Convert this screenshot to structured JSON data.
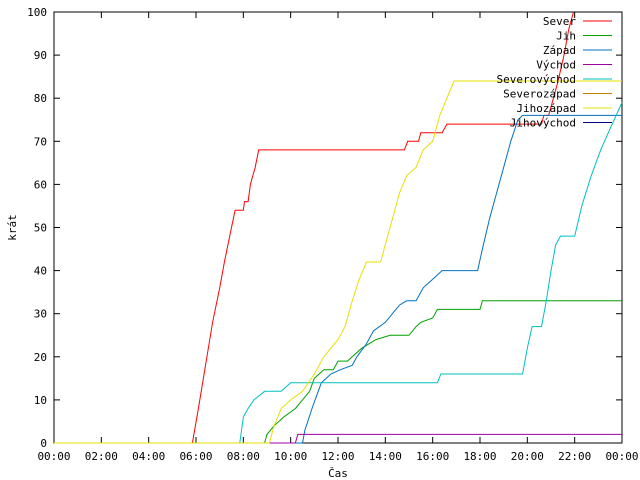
{
  "chart_data": {
    "type": "line",
    "title": "",
    "xlabel": "Čas",
    "ylabel": "krát",
    "ylim": [
      0,
      100
    ],
    "xlim": [
      0,
      24
    ],
    "grid": false,
    "legend_placement": "top-right",
    "y_ticks": [
      0,
      10,
      20,
      30,
      40,
      50,
      60,
      70,
      80,
      90,
      100
    ],
    "y_tick_labels": [
      "0",
      "10",
      "20",
      "30",
      "40",
      "50",
      "60",
      "70",
      "80",
      "90",
      "100"
    ],
    "x_ticks": [
      0,
      2,
      4,
      6,
      8,
      10,
      12,
      14,
      16,
      18,
      20,
      22,
      24
    ],
    "x_tick_labels": [
      "00:00",
      "02:00",
      "04:00",
      "06:00",
      "08:00",
      "10:00",
      "12:00",
      "14:00",
      "16:00",
      "18:00",
      "20:00",
      "22:00",
      "00:00"
    ],
    "series": [
      {
        "name": "Sever",
        "color": "#ff0000",
        "points": [
          [
            0,
            0
          ],
          [
            5.85,
            0
          ],
          [
            6.1,
            8
          ],
          [
            6.4,
            18
          ],
          [
            6.7,
            28
          ],
          [
            7.0,
            36
          ],
          [
            7.2,
            42
          ],
          [
            7.5,
            50
          ],
          [
            7.65,
            54
          ],
          [
            8.0,
            54
          ],
          [
            8.05,
            56
          ],
          [
            8.2,
            56
          ],
          [
            8.3,
            60
          ],
          [
            8.5,
            64
          ],
          [
            8.65,
            68
          ],
          [
            14.8,
            68
          ],
          [
            14.95,
            70
          ],
          [
            15.4,
            70
          ],
          [
            15.5,
            72
          ],
          [
            16.4,
            72
          ],
          [
            16.6,
            74
          ],
          [
            20.6,
            74
          ],
          [
            20.7,
            76
          ],
          [
            20.9,
            76
          ],
          [
            21.1,
            80
          ],
          [
            21.3,
            84
          ],
          [
            21.55,
            90
          ],
          [
            21.75,
            96
          ],
          [
            21.95,
            100
          ]
        ]
      },
      {
        "name": "Jih",
        "color": "#00a000",
        "points": [
          [
            0,
            0
          ],
          [
            8.9,
            0
          ],
          [
            9.0,
            2
          ],
          [
            9.3,
            4
          ],
          [
            9.7,
            6
          ],
          [
            10.2,
            8
          ],
          [
            10.5,
            10
          ],
          [
            10.8,
            12
          ],
          [
            11.0,
            15
          ],
          [
            11.4,
            17
          ],
          [
            11.8,
            17
          ],
          [
            12.0,
            19
          ],
          [
            12.4,
            19
          ],
          [
            12.6,
            20
          ],
          [
            13.0,
            22
          ],
          [
            13.3,
            23
          ],
          [
            13.6,
            24
          ],
          [
            14.2,
            25
          ],
          [
            15.0,
            25
          ],
          [
            15.3,
            27
          ],
          [
            15.5,
            28
          ],
          [
            16.0,
            29
          ],
          [
            16.2,
            31
          ],
          [
            18.0,
            31
          ],
          [
            18.1,
            33
          ],
          [
            24,
            33
          ]
        ]
      },
      {
        "name": "Západ",
        "color": "#0070c0",
        "points": [
          [
            0,
            0
          ],
          [
            10.5,
            0
          ],
          [
            10.6,
            3
          ],
          [
            10.9,
            8
          ],
          [
            11.1,
            11
          ],
          [
            11.3,
            14
          ],
          [
            11.7,
            16
          ],
          [
            12.1,
            17
          ],
          [
            12.6,
            18
          ],
          [
            12.8,
            20
          ],
          [
            13.2,
            23
          ],
          [
            13.5,
            26
          ],
          [
            14.0,
            28
          ],
          [
            14.3,
            30
          ],
          [
            14.6,
            32
          ],
          [
            14.9,
            33
          ],
          [
            15.3,
            33
          ],
          [
            15.6,
            36
          ],
          [
            16.0,
            38
          ],
          [
            16.4,
            40
          ],
          [
            17.9,
            40
          ],
          [
            18.1,
            45
          ],
          [
            18.4,
            52
          ],
          [
            18.7,
            58
          ],
          [
            19.0,
            64
          ],
          [
            19.3,
            70
          ],
          [
            19.6,
            75
          ],
          [
            19.8,
            76
          ],
          [
            24,
            76
          ]
        ]
      },
      {
        "name": "Východ",
        "color": "#a000a0",
        "points": [
          [
            0,
            0
          ],
          [
            10.2,
            0
          ],
          [
            10.3,
            2
          ],
          [
            24,
            2
          ]
        ]
      },
      {
        "name": "Severovýchod",
        "color": "#00c0c0",
        "points": [
          [
            0,
            0
          ],
          [
            7.85,
            0
          ],
          [
            8.0,
            6
          ],
          [
            8.2,
            8
          ],
          [
            8.45,
            10
          ],
          [
            8.9,
            12
          ],
          [
            9.6,
            12
          ],
          [
            9.8,
            13
          ],
          [
            10.0,
            14
          ],
          [
            16.2,
            14
          ],
          [
            16.35,
            16
          ],
          [
            19.8,
            16
          ],
          [
            20.0,
            22
          ],
          [
            20.2,
            27
          ],
          [
            20.6,
            27
          ],
          [
            20.8,
            33
          ],
          [
            21.0,
            40
          ],
          [
            21.2,
            46
          ],
          [
            21.4,
            48
          ],
          [
            22.0,
            48
          ],
          [
            22.3,
            55
          ],
          [
            22.7,
            62
          ],
          [
            23.1,
            68
          ],
          [
            23.5,
            73
          ],
          [
            24,
            79
          ]
        ]
      },
      {
        "name": "Severozápad",
        "color": "#c08000",
        "points": []
      },
      {
        "name": "Jihozápad",
        "color": "#e8e000",
        "points": [
          [
            0,
            0
          ],
          [
            9.1,
            0
          ],
          [
            9.3,
            4
          ],
          [
            9.6,
            8
          ],
          [
            10.0,
            10
          ],
          [
            10.5,
            12
          ],
          [
            11.0,
            16
          ],
          [
            11.4,
            20
          ],
          [
            11.7,
            22
          ],
          [
            12.0,
            24
          ],
          [
            12.3,
            27
          ],
          [
            12.6,
            33
          ],
          [
            12.9,
            38
          ],
          [
            13.2,
            42
          ],
          [
            13.8,
            42
          ],
          [
            14.0,
            46
          ],
          [
            14.3,
            52
          ],
          [
            14.6,
            58
          ],
          [
            14.9,
            62
          ],
          [
            15.3,
            64
          ],
          [
            15.6,
            68
          ],
          [
            16.0,
            70
          ],
          [
            16.3,
            76
          ],
          [
            16.6,
            80
          ],
          [
            16.9,
            84
          ],
          [
            24,
            84
          ]
        ]
      },
      {
        "name": "Jihovýchod",
        "color": "#000080",
        "points": []
      }
    ]
  }
}
